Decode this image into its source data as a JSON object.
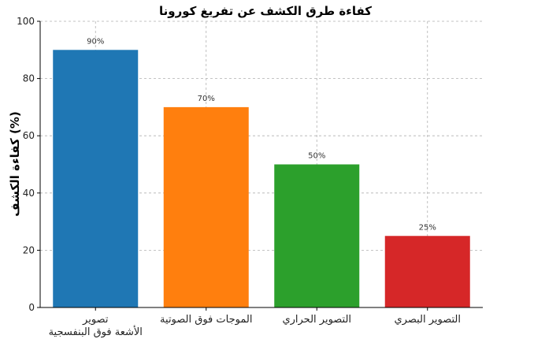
{
  "chart_data": {
    "type": "bar",
    "title": "كفاءة طرق الكشف عن تفريغ كورونا",
    "xlabel": "",
    "ylabel": "كفاءة الكشف (%)",
    "ylim": [
      0,
      100
    ],
    "yticks": [
      "0",
      "20",
      "40",
      "60",
      "80",
      "100"
    ],
    "categories": [
      [
        "تصوير",
        "الأشعة فوق البنفسجية"
      ],
      [
        "الموجات فوق الصوتية"
      ],
      [
        "التصوير الحراري"
      ],
      [
        "التصوير البصري"
      ]
    ],
    "values": [
      90,
      70,
      50,
      25
    ],
    "data_labels": [
      "90%",
      "70%",
      "50%",
      "25%"
    ],
    "colors": [
      "#1f77b4",
      "#ff7f0e",
      "#2ca02c",
      "#d62728"
    ],
    "grid": true
  }
}
